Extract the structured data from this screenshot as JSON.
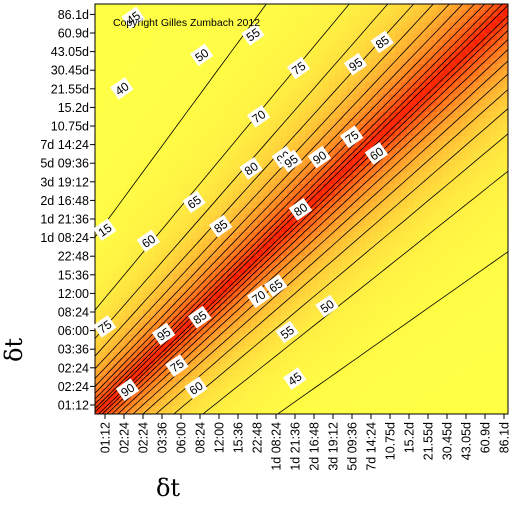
{
  "chart_data": {
    "type": "heatmap",
    "subtype": "contour",
    "annotation": "Copyright Gilles Zumbach 2012",
    "xlabel": "δt",
    "ylabel": "δt",
    "tick_labels": [
      "01:12",
      "02:24",
      "02:24",
      "03:36",
      "06:00",
      "08:24",
      "12:00",
      "15:36",
      "22:48",
      "1d 08:24",
      "1d 21:36",
      "2d 16:48",
      "3d 19:12",
      "5d 09:36",
      "7d 14:24",
      "10.75d",
      "15.2d",
      "21.55d",
      "30.45d",
      "43.05d",
      "60.9d",
      "86.1d"
    ],
    "contour_levels": [
      15,
      40,
      45,
      50,
      55,
      60,
      65,
      70,
      75,
      80,
      85,
      90,
      95
    ],
    "contour_labels": [
      {
        "text": "15",
        "x": 0.0,
        "y": 9.4
      },
      {
        "text": "40",
        "x": 0.9,
        "y": 17.0
      },
      {
        "text": "45",
        "x": 1.5,
        "y": 20.8
      },
      {
        "text": "50",
        "x": 5.1,
        "y": 18.8
      },
      {
        "text": "55",
        "x": 7.8,
        "y": 19.9
      },
      {
        "text": "60",
        "x": 2.3,
        "y": 8.8
      },
      {
        "text": "65",
        "x": 4.7,
        "y": 10.9
      },
      {
        "text": "70",
        "x": 8.1,
        "y": 15.5
      },
      {
        "text": "80",
        "x": 7.7,
        "y": 12.7
      },
      {
        "text": "85",
        "x": 6.1,
        "y": 9.6
      },
      {
        "text": "75",
        "x": 10.2,
        "y": 18.1
      },
      {
        "text": "95",
        "x": 13.2,
        "y": 18.3
      },
      {
        "text": "85",
        "x": 14.6,
        "y": 19.5
      },
      {
        "text": "90",
        "x": 9.4,
        "y": 13.3
      },
      {
        "text": "95",
        "x": 9.8,
        "y": 13.1
      },
      {
        "text": "90",
        "x": 11.3,
        "y": 13.3
      },
      {
        "text": "75",
        "x": 13.0,
        "y": 14.4
      },
      {
        "text": "60",
        "x": 14.3,
        "y": 13.5
      },
      {
        "text": "80",
        "x": 10.3,
        "y": 10.5
      },
      {
        "text": "70",
        "x": 8.1,
        "y": 5.8
      },
      {
        "text": "65",
        "x": 9.0,
        "y": 6.4
      },
      {
        "text": "50",
        "x": 11.7,
        "y": 5.3
      },
      {
        "text": "55",
        "x": 9.6,
        "y": 3.9
      },
      {
        "text": "45",
        "x": 10.0,
        "y": 1.4
      },
      {
        "text": "75",
        "x": 0.0,
        "y": 4.2
      },
      {
        "text": "95",
        "x": 3.1,
        "y": 3.8
      },
      {
        "text": "85",
        "x": 5.0,
        "y": 4.7
      },
      {
        "text": "75",
        "x": 3.8,
        "y": 2.1
      },
      {
        "text": "60",
        "x": 4.8,
        "y": 0.9
      },
      {
        "text": "90",
        "x": 1.2,
        "y": 0.8
      }
    ],
    "colors": {
      "low": "#ffff40",
      "mid": "#ffb020",
      "high": "#ff2010"
    },
    "grid": false,
    "legend": "none"
  }
}
